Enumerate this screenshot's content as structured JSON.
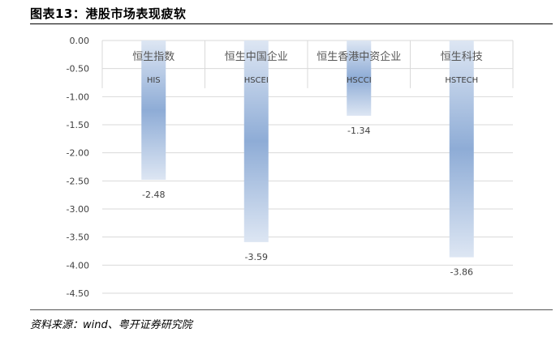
{
  "figure": {
    "title": "图表13：港股市场表现疲软",
    "source": "资料来源：wind、粤开证券研究院"
  },
  "colors": {
    "bar_edge": "#dde6f3",
    "bar_center": "#8eacd6",
    "grid": "#d9d9d9",
    "text": "#404040"
  },
  "chart_data": {
    "type": "bar",
    "categories": [
      {
        "zh": "恒生指数",
        "en": "HIS"
      },
      {
        "zh": "恒生中国企业",
        "en": "HSCEI"
      },
      {
        "zh": "恒生香港中资企业",
        "en": "HSCCI"
      },
      {
        "zh": "恒生科技",
        "en": "HSTECH"
      }
    ],
    "values": [
      -2.48,
      -3.59,
      -1.34,
      -3.86
    ],
    "value_labels": [
      "-2.48",
      "-3.59",
      "-1.34",
      "-3.86"
    ],
    "ylim": [
      -4.5,
      0
    ],
    "yticks": [
      "0.00",
      "-0.50",
      "-1.00",
      "-1.50",
      "-2.00",
      "-2.50",
      "-3.00",
      "-3.50",
      "-4.00",
      "-4.50"
    ],
    "grid": true,
    "legend": "none",
    "title": "",
    "xlabel": "",
    "ylabel": ""
  }
}
